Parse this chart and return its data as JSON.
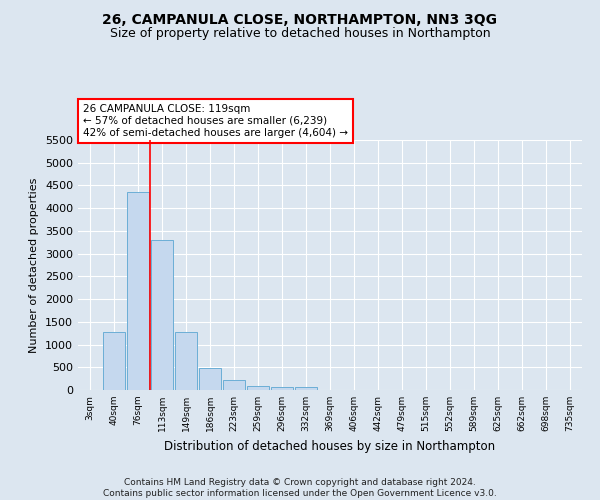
{
  "title": "26, CAMPANULA CLOSE, NORTHAMPTON, NN3 3QG",
  "subtitle": "Size of property relative to detached houses in Northampton",
  "xlabel": "Distribution of detached houses by size in Northampton",
  "ylabel": "Number of detached properties",
  "footer_line1": "Contains HM Land Registry data © Crown copyright and database right 2024.",
  "footer_line2": "Contains public sector information licensed under the Open Government Licence v3.0.",
  "categories": [
    "3sqm",
    "40sqm",
    "76sqm",
    "113sqm",
    "149sqm",
    "186sqm",
    "223sqm",
    "259sqm",
    "296sqm",
    "332sqm",
    "369sqm",
    "406sqm",
    "442sqm",
    "479sqm",
    "515sqm",
    "552sqm",
    "589sqm",
    "625sqm",
    "662sqm",
    "698sqm",
    "735sqm"
  ],
  "bar_values": [
    0,
    1270,
    4350,
    3300,
    1270,
    480,
    210,
    90,
    60,
    60,
    0,
    0,
    0,
    0,
    0,
    0,
    0,
    0,
    0,
    0,
    0
  ],
  "bar_color": "#c5d8ee",
  "bar_edge_color": "#6baed6",
  "background_color": "#dce6f0",
  "grid_color": "#ffffff",
  "vline_x_index": 2.5,
  "vline_color": "red",
  "ylim": [
    0,
    5500
  ],
  "yticks": [
    0,
    500,
    1000,
    1500,
    2000,
    2500,
    3000,
    3500,
    4000,
    4500,
    5000,
    5500
  ],
  "annotation_text": "26 CAMPANULA CLOSE: 119sqm\n← 57% of detached houses are smaller (6,239)\n42% of semi-detached houses are larger (4,604) →",
  "annotation_box_color": "white",
  "annotation_box_edge": "red",
  "title_fontsize": 10,
  "subtitle_fontsize": 9,
  "footer_fontsize": 6.5
}
